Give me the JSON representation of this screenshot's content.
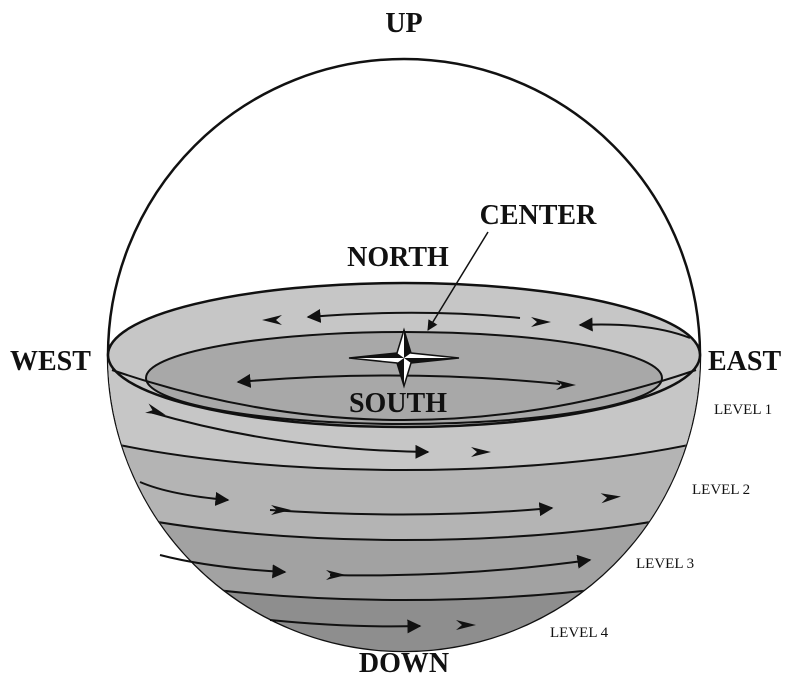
{
  "labels": {
    "up": "UP",
    "down": "DOWN",
    "north": "NORTH",
    "south": "SOUTH",
    "east": "EAST",
    "west": "WEST",
    "center": "CENTER"
  },
  "levels": [
    "LEVEL 1",
    "LEVEL 2",
    "LEVEL 3",
    "LEVEL 4"
  ]
}
